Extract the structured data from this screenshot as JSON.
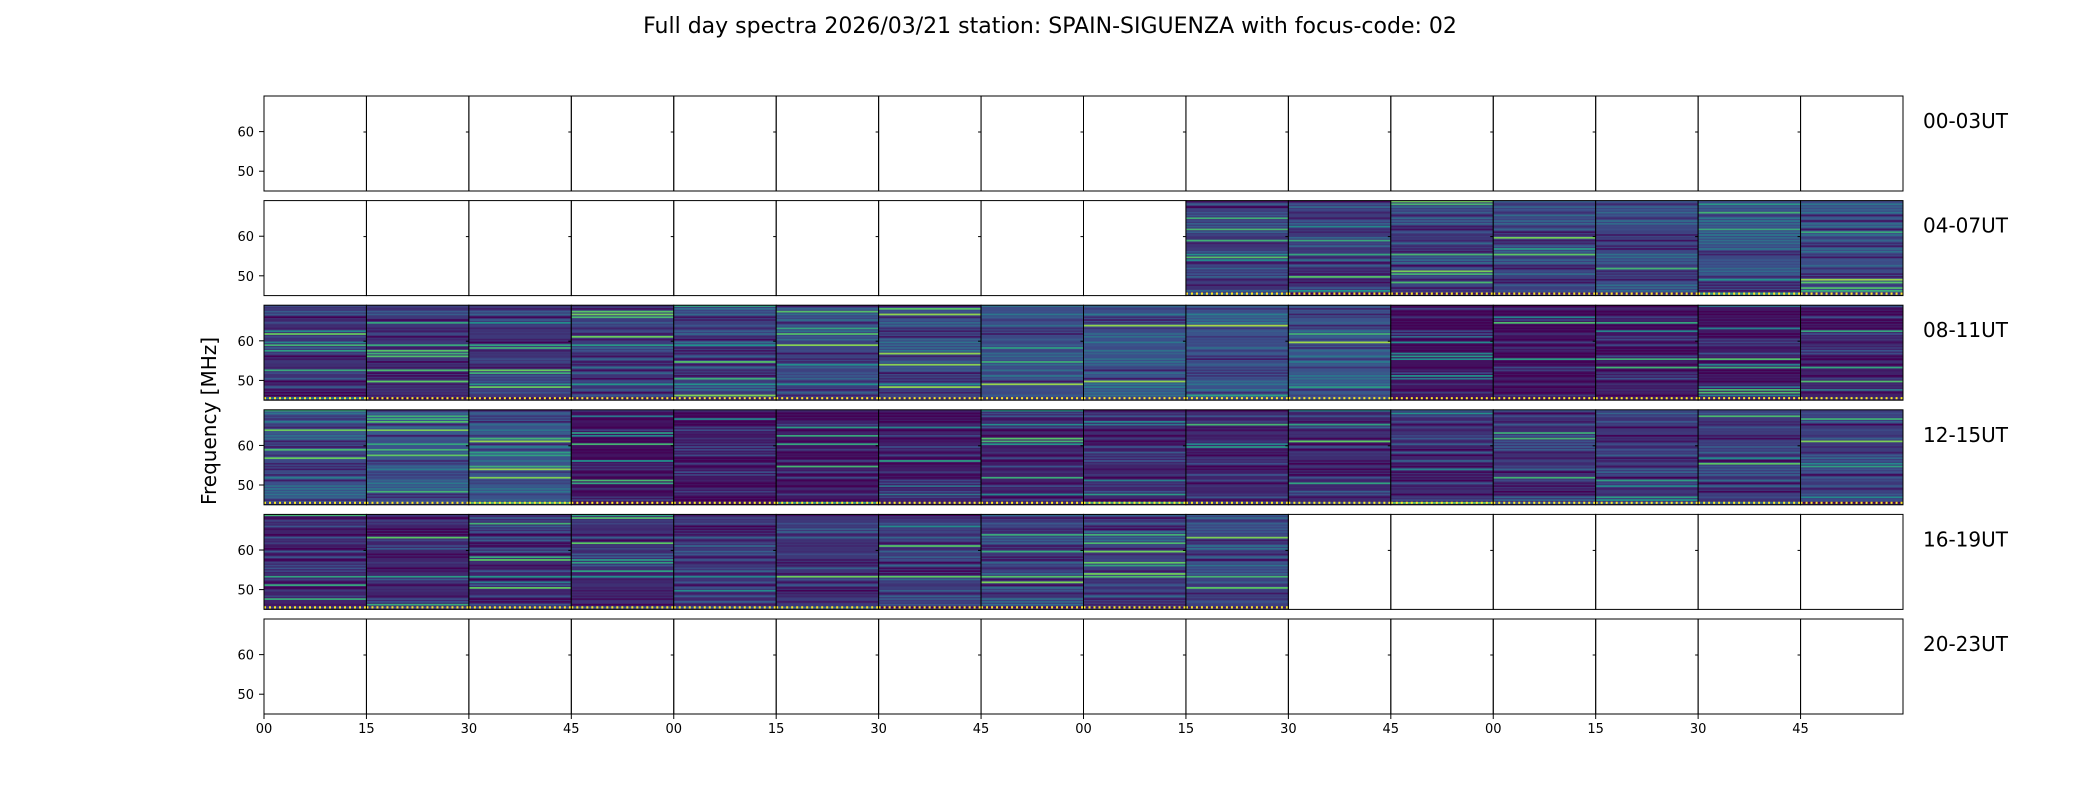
{
  "chart_data": {
    "type": "heatmap",
    "title": "Full day spectra 2026/03/21 station: SPAIN-SIGUENZA with focus-code: 02",
    "xlabel": "",
    "ylabel": "Frequency [MHz]",
    "ylim": [
      45,
      69
    ],
    "y_ticks": [
      "50",
      "60"
    ],
    "y_tick_values": [
      50,
      60
    ],
    "x_tick_labels": [
      "00",
      "15",
      "30",
      "45",
      "00",
      "15",
      "30",
      "45",
      "00",
      "15",
      "30",
      "45",
      "00",
      "15",
      "30",
      "45"
    ],
    "panels_per_row": 16,
    "panel_minutes": 15,
    "colormap": "viridis",
    "rows": [
      {
        "label": "00-03UT",
        "has_data": [
          0,
          0,
          0,
          0,
          0,
          0,
          0,
          0,
          0,
          0,
          0,
          0,
          0,
          0,
          0,
          0
        ]
      },
      {
        "label": "04-07UT",
        "has_data": [
          0,
          0,
          0,
          0,
          0,
          0,
          0,
          0,
          0,
          1,
          1,
          1,
          1,
          1,
          1,
          1
        ]
      },
      {
        "label": "08-11UT",
        "has_data": [
          1,
          1,
          1,
          1,
          1,
          1,
          1,
          1,
          1,
          1,
          1,
          1,
          1,
          1,
          1,
          1
        ]
      },
      {
        "label": "12-15UT",
        "has_data": [
          1,
          1,
          1,
          1,
          1,
          1,
          1,
          1,
          1,
          1,
          1,
          1,
          1,
          1,
          1,
          1
        ]
      },
      {
        "label": "16-19UT",
        "has_data": [
          1,
          1,
          1,
          1,
          1,
          1,
          1,
          1,
          1,
          1,
          0,
          0,
          0,
          0,
          0,
          0
        ]
      },
      {
        "label": "20-23UT",
        "has_data": [
          0,
          0,
          0,
          0,
          0,
          0,
          0,
          0,
          0,
          0,
          0,
          0,
          0,
          0,
          0,
          0
        ]
      }
    ]
  }
}
